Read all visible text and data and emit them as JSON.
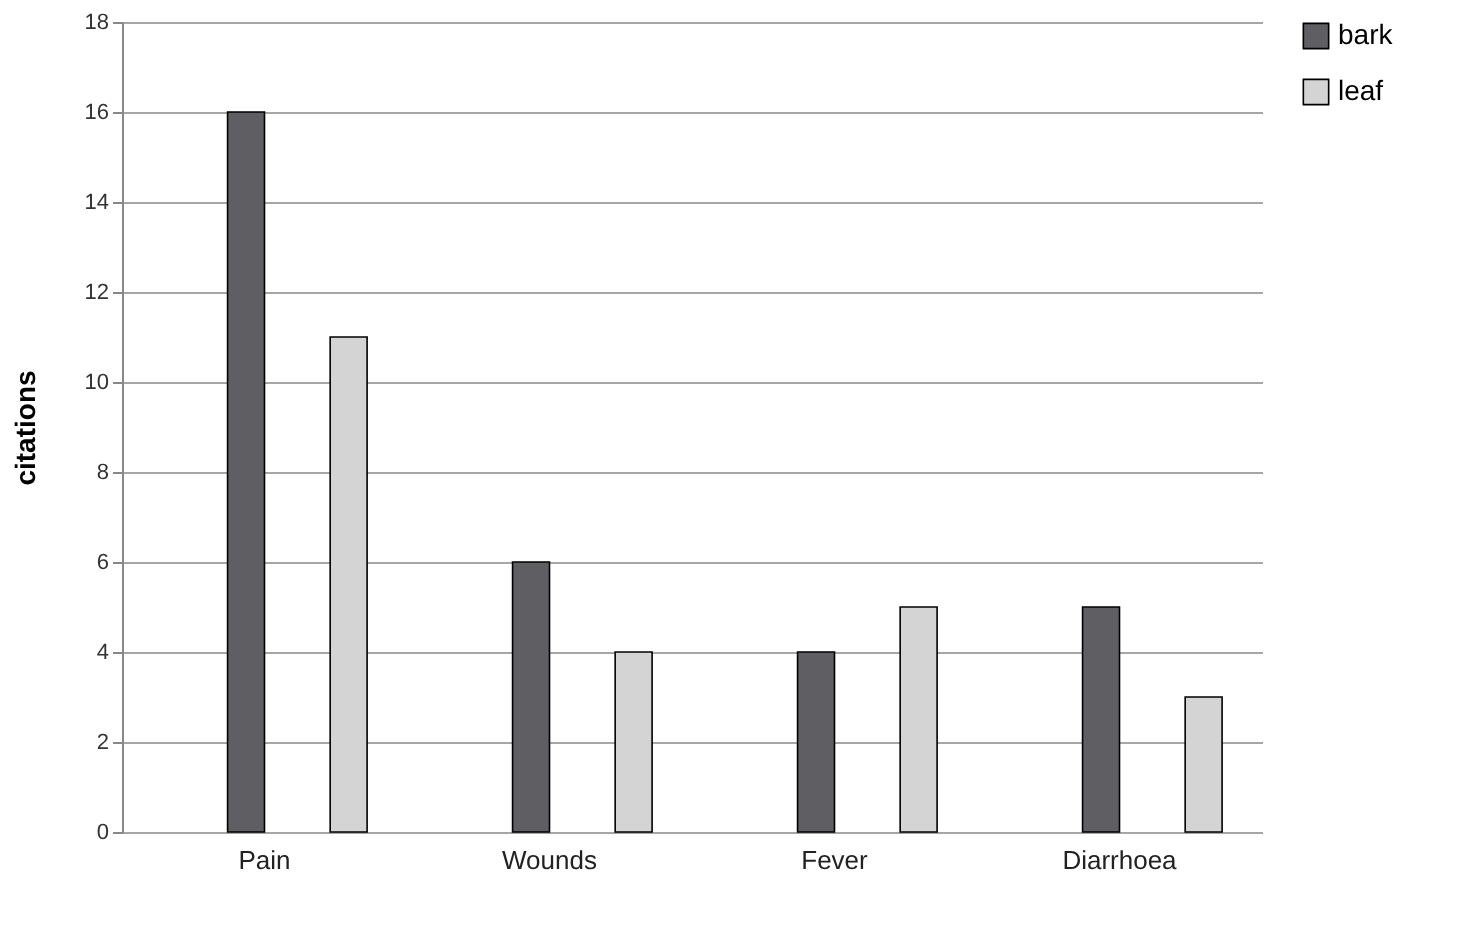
{
  "chart_data": {
    "type": "bar",
    "ylabel": "citations",
    "categories": [
      "Pain",
      "Wounds",
      "Fever",
      "Diarrhoea"
    ],
    "series": [
      {
        "name": "bark",
        "color": "#5f5f63",
        "values": [
          16,
          6,
          4,
          5
        ]
      },
      {
        "name": "leaf",
        "color": "#d4d4d4",
        "values": [
          11,
          4,
          5,
          3
        ]
      }
    ],
    "ylim": [
      0,
      18
    ],
    "yticks": [
      0,
      2,
      4,
      6,
      8,
      10,
      12,
      14,
      16,
      18
    ],
    "grid": "y",
    "legend": "right"
  }
}
